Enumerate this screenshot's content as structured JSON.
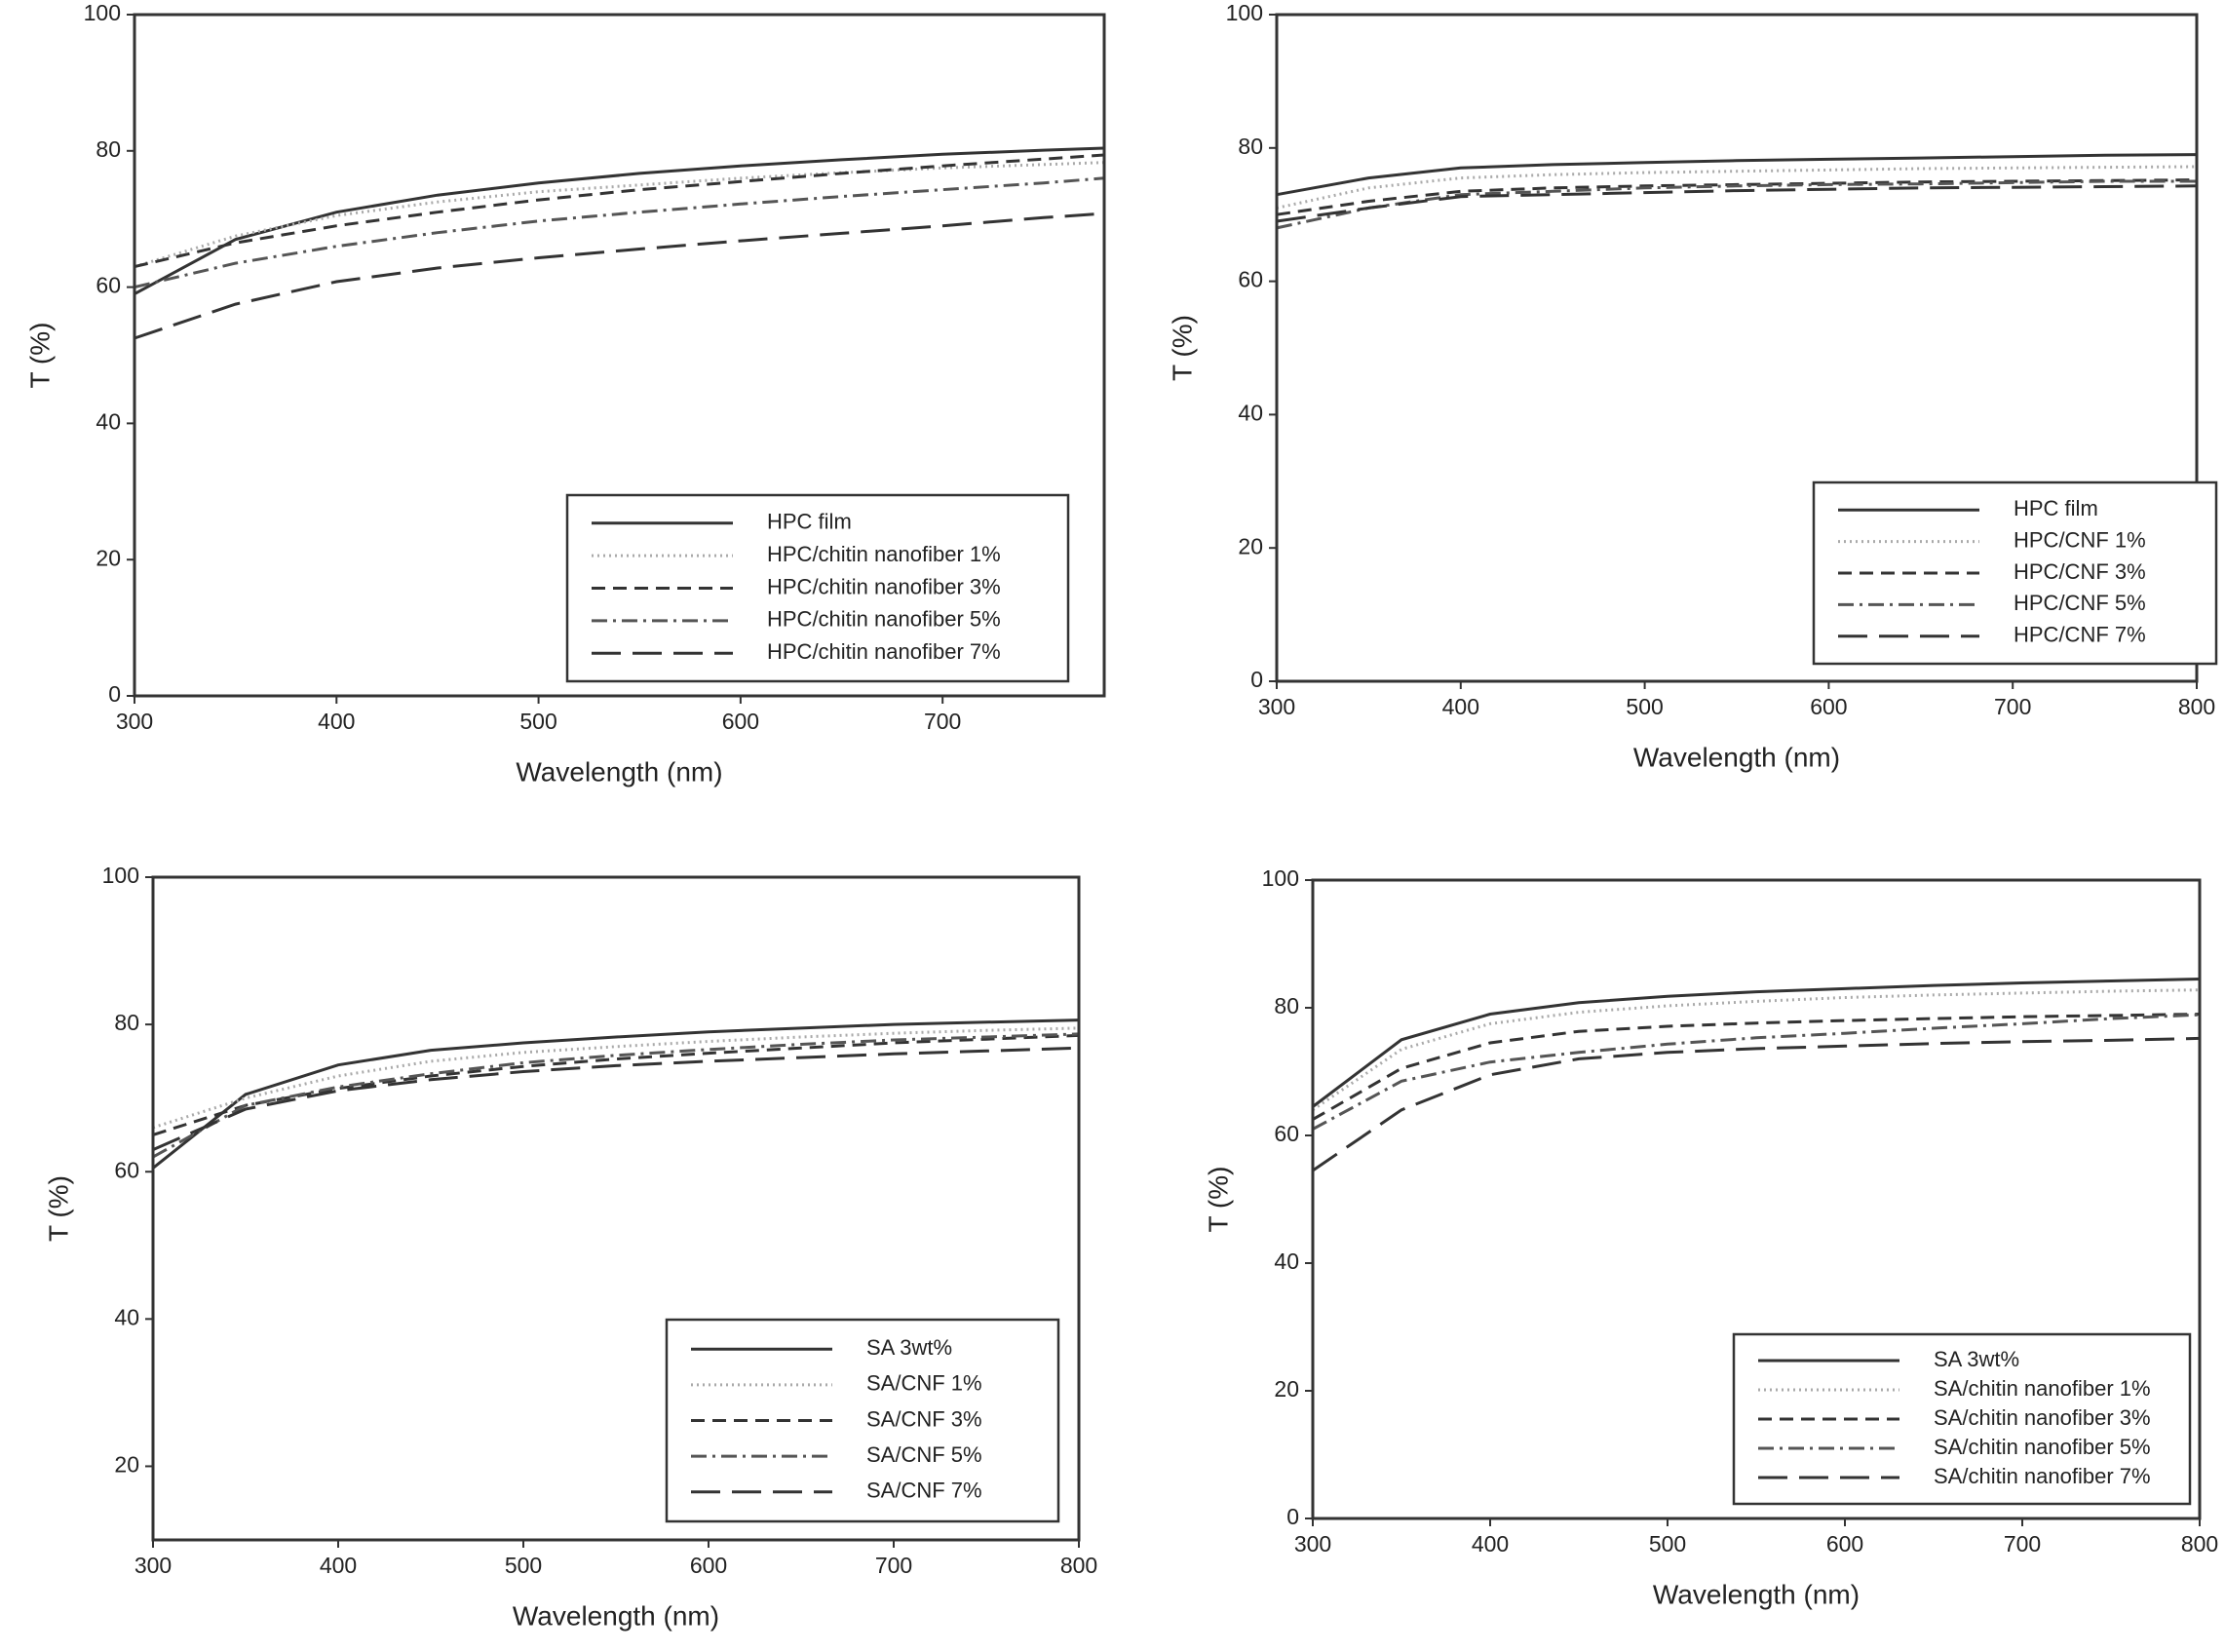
{
  "chart_data": [
    {
      "type": "line",
      "xlabel": "Wavelength (nm)",
      "ylabel": "T (%)",
      "x": [
        300,
        350,
        400,
        450,
        500,
        550,
        600,
        650,
        700,
        750,
        780
      ],
      "xlim": [
        300,
        780
      ],
      "xticks": [
        300,
        400,
        500,
        600,
        700
      ],
      "ylim": [
        0,
        100
      ],
      "yticks": [
        0,
        20,
        40,
        60,
        80,
        100
      ],
      "series": [
        {
          "name": "HPC film",
          "color": "#333333",
          "style": "solid",
          "values": [
            59,
            67,
            71,
            73.5,
            75.3,
            76.7,
            77.8,
            78.7,
            79.5,
            80.1,
            80.4
          ]
        },
        {
          "name": "HPC/chitin nanofiber 1%",
          "color": "#aaaaaa",
          "style": "dotted",
          "values": [
            63,
            67.5,
            70.5,
            72.5,
            74,
            75,
            76,
            76.8,
            77.5,
            78,
            78.3
          ]
        },
        {
          "name": "HPC/chitin nanofiber 3%",
          "color": "#333333",
          "style": "dashed",
          "values": [
            63,
            66.5,
            69,
            71,
            72.8,
            74.3,
            75.5,
            76.7,
            77.8,
            78.8,
            79.4
          ]
        },
        {
          "name": "HPC/chitin nanofiber 5%",
          "color": "#555555",
          "style": "dash-dot",
          "values": [
            60,
            63.5,
            66,
            68,
            69.7,
            71,
            72.2,
            73.3,
            74.3,
            75.3,
            76
          ]
        },
        {
          "name": "HPC/chitin nanofiber 7%",
          "color": "#333333",
          "style": "long-dash",
          "values": [
            52.5,
            57.5,
            60.8,
            62.8,
            64.3,
            65.6,
            66.8,
            67.9,
            69,
            70.2,
            70.8
          ]
        }
      ]
    },
    {
      "type": "line",
      "xlabel": "Wavelength (nm)",
      "ylabel": "T (%)",
      "x": [
        300,
        350,
        400,
        450,
        500,
        550,
        600,
        650,
        700,
        750,
        800
      ],
      "xlim": [
        300,
        800
      ],
      "xticks": [
        300,
        400,
        500,
        600,
        700,
        800
      ],
      "ylim": [
        0,
        100
      ],
      "yticks": [
        0,
        20,
        40,
        60,
        80,
        100
      ],
      "series": [
        {
          "name": "HPC film",
          "color": "#333333",
          "style": "solid",
          "values": [
            73,
            75.5,
            77,
            77.5,
            77.8,
            78.1,
            78.3,
            78.5,
            78.7,
            78.9,
            79
          ]
        },
        {
          "name": "HPC/CNF 1%",
          "color": "#aaaaaa",
          "style": "dotted",
          "values": [
            71,
            74,
            75.5,
            76,
            76.3,
            76.5,
            76.7,
            76.9,
            77,
            77.1,
            77.2
          ]
        },
        {
          "name": "HPC/CNF 3%",
          "color": "#333333",
          "style": "dashed",
          "values": [
            70,
            72,
            73.5,
            74,
            74.3,
            74.5,
            74.7,
            74.9,
            75,
            75.1,
            75.2
          ]
        },
        {
          "name": "HPC/CNF 5%",
          "color": "#555555",
          "style": "dash-dot",
          "values": [
            68,
            71,
            73,
            73.5,
            74,
            74.3,
            74.5,
            74.6,
            74.8,
            75,
            75
          ]
        },
        {
          "name": "HPC/CNF 7%",
          "color": "#333333",
          "style": "long-dash",
          "values": [
            69,
            71,
            72.7,
            73,
            73.3,
            73.6,
            73.8,
            74,
            74.1,
            74.2,
            74.3
          ]
        }
      ]
    },
    {
      "type": "line",
      "xlabel": "Wavelength (nm)",
      "ylabel": "T (%)",
      "x": [
        300,
        350,
        400,
        450,
        500,
        550,
        600,
        650,
        700,
        750,
        800
      ],
      "xlim": [
        300,
        800
      ],
      "xticks": [
        300,
        400,
        500,
        600,
        700,
        800
      ],
      "ylim": [
        10,
        100
      ],
      "yticks": [
        20,
        40,
        60,
        80,
        100
      ],
      "series": [
        {
          "name": "SA 3wt%",
          "color": "#333333",
          "style": "solid",
          "values": [
            60.5,
            70.5,
            74.5,
            76.5,
            77.5,
            78.3,
            79,
            79.5,
            80,
            80.3,
            80.6
          ]
        },
        {
          "name": "SA/CNF 1%",
          "color": "#aaaaaa",
          "style": "dotted",
          "values": [
            66,
            70,
            73,
            75,
            76.2,
            77,
            77.7,
            78.3,
            78.8,
            79.2,
            79.5
          ]
        },
        {
          "name": "SA/CNF 3%",
          "color": "#333333",
          "style": "dashed",
          "values": [
            65,
            69,
            71.3,
            73,
            74.3,
            75.3,
            76.1,
            76.8,
            77.5,
            78,
            78.5
          ]
        },
        {
          "name": "SA/CNF 5%",
          "color": "#555555",
          "style": "dash-dot",
          "values": [
            62,
            69,
            71.5,
            73.3,
            74.8,
            75.8,
            76.6,
            77.3,
            77.9,
            78.3,
            78.7
          ]
        },
        {
          "name": "SA/CNF 7%",
          "color": "#333333",
          "style": "long-dash",
          "values": [
            63,
            68.5,
            71,
            72.5,
            73.6,
            74.4,
            75,
            75.5,
            76,
            76.4,
            76.8
          ]
        }
      ]
    },
    {
      "type": "line",
      "xlabel": "Wavelength (nm)",
      "ylabel": "T (%)",
      "x": [
        300,
        350,
        400,
        450,
        500,
        550,
        600,
        650,
        700,
        750,
        800
      ],
      "xlim": [
        300,
        800
      ],
      "xticks": [
        300,
        400,
        500,
        600,
        700,
        800
      ],
      "ylim": [
        0,
        100
      ],
      "yticks": [
        0,
        20,
        40,
        60,
        80,
        100
      ],
      "series": [
        {
          "name": "SA 3wt%",
          "color": "#333333",
          "style": "solid",
          "values": [
            64.5,
            75,
            79,
            80.8,
            81.8,
            82.5,
            83,
            83.5,
            83.9,
            84.2,
            84.5
          ]
        },
        {
          "name": "SA/chitin nanofiber 1%",
          "color": "#aaaaaa",
          "style": "dotted",
          "values": [
            64,
            73.5,
            77.5,
            79.3,
            80.3,
            81,
            81.6,
            82,
            82.3,
            82.6,
            82.8
          ]
        },
        {
          "name": "SA/chitin nanofiber 3%",
          "color": "#333333",
          "style": "dashed",
          "values": [
            62.5,
            70.5,
            74.5,
            76.3,
            77.1,
            77.6,
            78,
            78.3,
            78.6,
            78.8,
            79
          ]
        },
        {
          "name": "SA/chitin nanofiber 5%",
          "color": "#555555",
          "style": "dash-dot",
          "values": [
            61,
            68.5,
            71.5,
            73,
            74.3,
            75.3,
            76,
            76.8,
            77.5,
            78.3,
            78.9
          ]
        },
        {
          "name": "SA/chitin nanofiber 7%",
          "color": "#333333",
          "style": "long-dash",
          "values": [
            54.5,
            64,
            69.5,
            72,
            73,
            73.6,
            74,
            74.4,
            74.7,
            74.9,
            75.2
          ]
        }
      ]
    }
  ]
}
